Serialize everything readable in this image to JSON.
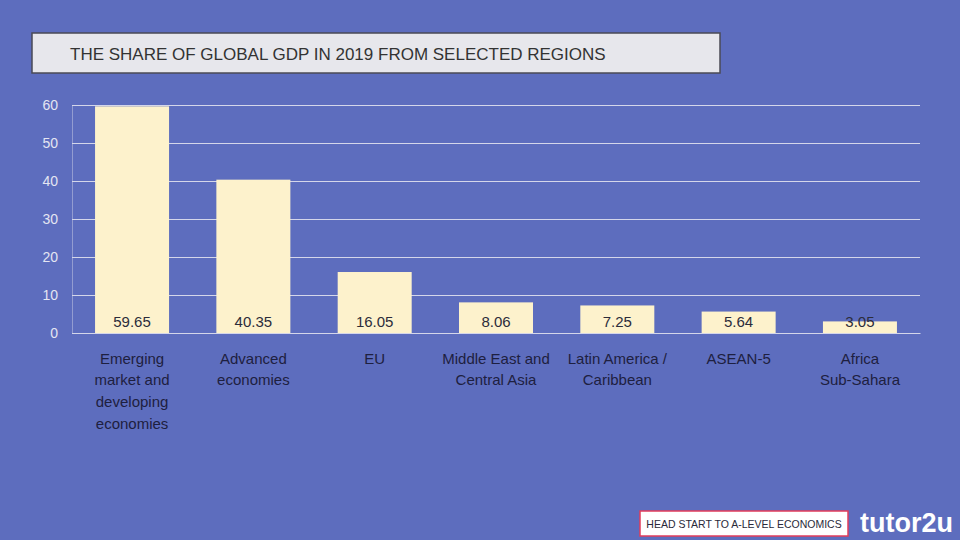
{
  "chart_data": {
    "type": "bar",
    "title": "THE SHARE OF GLOBAL GDP IN 2019 FROM SELECTED REGIONS",
    "categories": [
      "Emerging market and developing economies",
      "Advanced economies",
      "EU",
      "Middle East and Central Asia",
      "Latin America / Caribbean",
      "ASEAN-5",
      "Africa Sub-Sahara"
    ],
    "values": [
      59.65,
      40.35,
      16.05,
      8.06,
      7.25,
      5.64,
      3.05
    ],
    "color": "#fdf2cc",
    "ylim": [
      0,
      60
    ],
    "yticks": [
      0,
      10,
      20,
      30,
      40,
      50,
      60
    ],
    "grid": true,
    "data_labels": true,
    "annotations": [
      "HEAD START TO A-LEVEL ECONOMICS",
      "tutor2u"
    ]
  }
}
